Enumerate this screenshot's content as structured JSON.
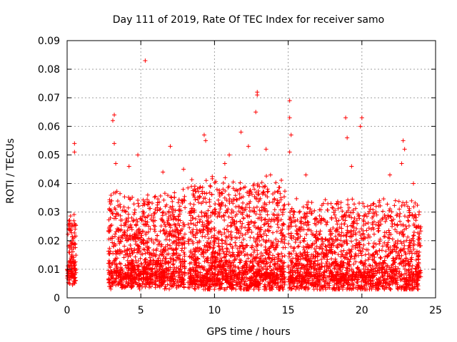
{
  "chart_data": {
    "type": "scatter",
    "title": "Day 111 of 2019, Rate Of TEC Index for receiver samo",
    "xlabel": "GPS time / hours",
    "ylabel": "ROTI / TECUs",
    "xlim": [
      0,
      25
    ],
    "ylim": [
      0,
      0.09
    ],
    "xticks": [
      0,
      5,
      10,
      15,
      20,
      25
    ],
    "xtick_labels": [
      "0",
      "5",
      "10",
      "15",
      "20",
      "25"
    ],
    "yticks": [
      0,
      0.01,
      0.02,
      0.03,
      0.04,
      0.05,
      0.06,
      0.07,
      0.08,
      0.09
    ],
    "ytick_labels": [
      "0",
      "0.01",
      "0.02",
      "0.03",
      "0.04",
      "0.05",
      "0.06",
      "0.07",
      "0.08",
      "0.09"
    ],
    "grid": true,
    "marker": "+",
    "color": "#ff0000",
    "series": [
      {
        "name": "ROTI",
        "segments": [
          {
            "x_range": [
              0.0,
              0.6
            ],
            "y_base": 0.015,
            "y_spread": 0.022,
            "count": 140
          },
          {
            "x_range": [
              2.8,
              8.0
            ],
            "y_base": 0.014,
            "y_spread": 0.03,
            "count": 1100
          },
          {
            "x_range": [
              8.2,
              14.8
            ],
            "y_base": 0.013,
            "y_spread": 0.035,
            "count": 1500
          },
          {
            "x_range": [
              15.0,
              24.0
            ],
            "y_base": 0.013,
            "y_spread": 0.028,
            "count": 1700
          }
        ],
        "outliers": [
          [
            0.5,
            0.054
          ],
          [
            0.5,
            0.051
          ],
          [
            3.1,
            0.062
          ],
          [
            3.2,
            0.064
          ],
          [
            3.3,
            0.047
          ],
          [
            3.2,
            0.054
          ],
          [
            4.8,
            0.05
          ],
          [
            5.3,
            0.083
          ],
          [
            6.5,
            0.044
          ],
          [
            7.0,
            0.053
          ],
          [
            9.3,
            0.057
          ],
          [
            9.4,
            0.055
          ],
          [
            11.0,
            0.05
          ],
          [
            11.8,
            0.058
          ],
          [
            12.9,
            0.072
          ],
          [
            12.9,
            0.071
          ],
          [
            12.8,
            0.065
          ],
          [
            13.5,
            0.052
          ],
          [
            15.1,
            0.069
          ],
          [
            15.1,
            0.063
          ],
          [
            15.2,
            0.057
          ],
          [
            15.1,
            0.051
          ],
          [
            16.2,
            0.043
          ],
          [
            18.9,
            0.063
          ],
          [
            19.0,
            0.056
          ],
          [
            19.3,
            0.046
          ],
          [
            20.0,
            0.063
          ],
          [
            19.9,
            0.06
          ],
          [
            21.9,
            0.043
          ],
          [
            22.8,
            0.055
          ],
          [
            22.9,
            0.052
          ],
          [
            22.7,
            0.047
          ],
          [
            13.8,
            0.043
          ],
          [
            23.5,
            0.04
          ],
          [
            7.9,
            0.045
          ],
          [
            10.7,
            0.047
          ],
          [
            12.3,
            0.053
          ],
          [
            4.2,
            0.046
          ]
        ]
      }
    ]
  }
}
